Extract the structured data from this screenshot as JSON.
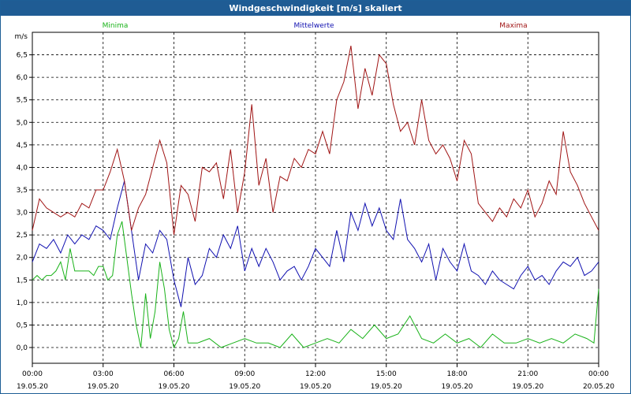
{
  "title": "Windgeschwindigkeit [m/s] skaliert",
  "colors": {
    "minima": "#19b219",
    "mittel": "#1010b0",
    "maxima": "#a01414",
    "titlebar": "#1f5c94"
  },
  "chart_data": {
    "type": "line",
    "ylabel": "m/s",
    "ylim": [
      -0.35,
      7.0
    ],
    "yticks": [
      0.0,
      0.5,
      1.0,
      1.5,
      2.0,
      2.5,
      3.0,
      3.5,
      4.0,
      4.5,
      5.0,
      5.5,
      6.0,
      6.5
    ],
    "ytick_labels": [
      "0,0",
      "0,5",
      "1,0",
      "1,5",
      "2,0",
      "2,5",
      "3,0",
      "3,5",
      "4,0",
      "4,5",
      "5,0",
      "5,5",
      "6,0",
      "6,5"
    ],
    "xlim_hours": [
      0,
      24
    ],
    "xtick_labels": [
      {
        "time": "00:00",
        "date": "19.05.20"
      },
      {
        "time": "03:00",
        "date": "19.05.20"
      },
      {
        "time": "06:00",
        "date": "19.05.20"
      },
      {
        "time": "09:00",
        "date": "19.05.20"
      },
      {
        "time": "12:00",
        "date": "19.05.20"
      },
      {
        "time": "15:00",
        "date": "19.05.20"
      },
      {
        "time": "18:00",
        "date": "19.05.20"
      },
      {
        "time": "21:00",
        "date": "19.05.20"
      },
      {
        "time": "00:00",
        "date": "20.05.20"
      }
    ],
    "grid": true,
    "legend_position": "top",
    "series": [
      {
        "name": "Minima",
        "x": [
          0,
          0.2,
          0.4,
          0.6,
          0.8,
          1.0,
          1.2,
          1.4,
          1.6,
          1.8,
          2.0,
          2.2,
          2.4,
          2.6,
          2.8,
          3.0,
          3.2,
          3.4,
          3.6,
          3.8,
          4.0,
          4.2,
          4.4,
          4.6,
          4.8,
          5.0,
          5.2,
          5.4,
          5.6,
          5.8,
          6.0,
          6.2,
          6.4,
          6.6,
          6.8,
          7.0,
          7.5,
          8.0,
          8.5,
          9.0,
          9.5,
          10.0,
          10.5,
          11.0,
          11.5,
          12.0,
          12.5,
          13.0,
          13.5,
          14.0,
          14.5,
          15.0,
          15.5,
          16.0,
          16.5,
          17.0,
          17.5,
          18.0,
          18.5,
          19.0,
          19.5,
          20.0,
          20.5,
          21.0,
          21.5,
          22.0,
          22.5,
          23.0,
          23.5,
          23.8,
          24.0
        ],
        "y": [
          1.5,
          1.6,
          1.5,
          1.6,
          1.6,
          1.7,
          1.9,
          1.5,
          2.2,
          1.7,
          1.7,
          1.7,
          1.7,
          1.6,
          1.8,
          1.8,
          1.5,
          1.6,
          2.5,
          2.8,
          2.0,
          1.2,
          0.5,
          0.0,
          1.2,
          0.2,
          0.8,
          1.9,
          1.3,
          0.4,
          0.0,
          0.2,
          0.8,
          0.1,
          0.1,
          0.1,
          0.2,
          0.0,
          0.1,
          0.2,
          0.1,
          0.1,
          0.0,
          0.3,
          0.0,
          0.1,
          0.2,
          0.1,
          0.4,
          0.2,
          0.5,
          0.2,
          0.3,
          0.7,
          0.2,
          0.1,
          0.3,
          0.1,
          0.2,
          0.0,
          0.3,
          0.1,
          0.1,
          0.2,
          0.1,
          0.2,
          0.1,
          0.3,
          0.2,
          0.1,
          1.3
        ]
      },
      {
        "name": "Mittelwerte",
        "x": [
          0,
          0.3,
          0.6,
          0.9,
          1.2,
          1.5,
          1.8,
          2.1,
          2.4,
          2.7,
          3.0,
          3.3,
          3.6,
          3.9,
          4.2,
          4.5,
          4.8,
          5.1,
          5.4,
          5.7,
          6.0,
          6.3,
          6.6,
          6.9,
          7.2,
          7.5,
          7.8,
          8.1,
          8.4,
          8.7,
          9.0,
          9.3,
          9.6,
          9.9,
          10.2,
          10.5,
          10.8,
          11.1,
          11.4,
          11.7,
          12.0,
          12.3,
          12.6,
          12.9,
          13.2,
          13.5,
          13.8,
          14.1,
          14.4,
          14.7,
          15.0,
          15.3,
          15.6,
          15.9,
          16.2,
          16.5,
          16.8,
          17.1,
          17.4,
          17.7,
          18.0,
          18.3,
          18.6,
          18.9,
          19.2,
          19.5,
          19.8,
          20.1,
          20.4,
          20.7,
          21.0,
          21.3,
          21.6,
          21.9,
          22.2,
          22.5,
          22.8,
          23.1,
          23.4,
          23.7,
          24.0
        ],
        "y": [
          1.9,
          2.3,
          2.2,
          2.4,
          2.1,
          2.5,
          2.3,
          2.5,
          2.4,
          2.7,
          2.6,
          2.4,
          3.1,
          3.7,
          2.6,
          1.5,
          2.3,
          2.1,
          2.6,
          2.4,
          1.5,
          0.9,
          2.0,
          1.4,
          1.6,
          2.2,
          2.0,
          2.5,
          2.2,
          2.7,
          1.7,
          2.2,
          1.8,
          2.2,
          1.9,
          1.5,
          1.7,
          1.8,
          1.5,
          1.8,
          2.2,
          2.0,
          1.8,
          2.6,
          1.9,
          3.0,
          2.6,
          3.2,
          2.7,
          3.1,
          2.6,
          2.4,
          3.3,
          2.4,
          2.2,
          1.9,
          2.3,
          1.5,
          2.2,
          1.9,
          1.7,
          2.3,
          1.7,
          1.6,
          1.4,
          1.7,
          1.5,
          1.4,
          1.3,
          1.6,
          1.8,
          1.5,
          1.6,
          1.4,
          1.7,
          1.9,
          1.8,
          2.0,
          1.6,
          1.7,
          1.9
        ]
      },
      {
        "name": "Maxima",
        "x": [
          0,
          0.3,
          0.6,
          0.9,
          1.2,
          1.5,
          1.8,
          2.1,
          2.4,
          2.7,
          3.0,
          3.3,
          3.6,
          3.9,
          4.2,
          4.5,
          4.8,
          5.1,
          5.4,
          5.7,
          6.0,
          6.3,
          6.6,
          6.9,
          7.2,
          7.5,
          7.8,
          8.1,
          8.4,
          8.7,
          9.0,
          9.3,
          9.6,
          9.9,
          10.2,
          10.5,
          10.8,
          11.1,
          11.4,
          11.7,
          12.0,
          12.3,
          12.6,
          12.9,
          13.2,
          13.5,
          13.8,
          14.1,
          14.4,
          14.7,
          15.0,
          15.3,
          15.6,
          15.9,
          16.2,
          16.5,
          16.8,
          17.1,
          17.4,
          17.7,
          18.0,
          18.3,
          18.6,
          18.9,
          19.2,
          19.5,
          19.8,
          20.1,
          20.4,
          20.7,
          21.0,
          21.3,
          21.6,
          21.9,
          22.2,
          22.5,
          22.8,
          23.1,
          23.4,
          23.7,
          24.0
        ],
        "y": [
          2.6,
          3.3,
          3.1,
          3.0,
          2.9,
          3.0,
          2.9,
          3.2,
          3.1,
          3.5,
          3.5,
          3.9,
          4.4,
          3.7,
          2.6,
          3.1,
          3.4,
          4.0,
          4.6,
          4.1,
          2.5,
          3.6,
          3.4,
          2.8,
          4.0,
          3.9,
          4.1,
          3.3,
          4.4,
          3.0,
          3.9,
          5.4,
          3.6,
          4.2,
          3.0,
          3.8,
          3.7,
          4.2,
          4.0,
          4.4,
          4.3,
          4.8,
          4.3,
          5.5,
          5.9,
          6.7,
          5.3,
          6.2,
          5.6,
          6.5,
          6.3,
          5.4,
          4.8,
          5.0,
          4.5,
          5.5,
          4.6,
          4.3,
          4.5,
          4.2,
          3.7,
          4.6,
          4.3,
          3.2,
          3.0,
          2.8,
          3.1,
          2.9,
          3.3,
          3.1,
          3.5,
          2.9,
          3.2,
          3.7,
          3.4,
          4.8,
          3.9,
          3.6,
          3.2,
          2.9,
          2.6
        ]
      }
    ]
  }
}
